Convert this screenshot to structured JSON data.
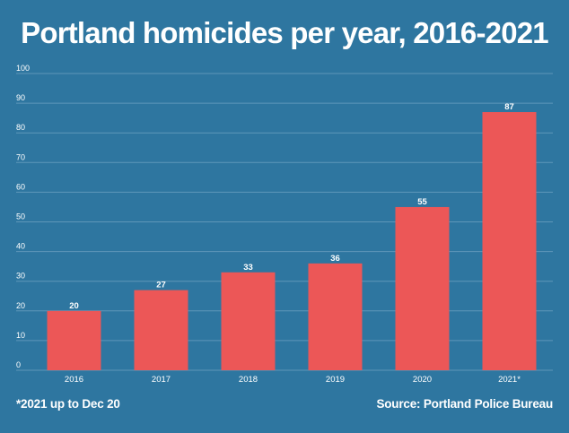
{
  "title": "Portland homicides per year, 2016-2021",
  "footnote": "*2021 up to Dec 20",
  "source": "Source: Portland Police Bureau",
  "colors": {
    "background": "#2e76a0",
    "bar": "#ec5757",
    "grid": "#5e97b9",
    "text": "#ffffff"
  },
  "chart_data": {
    "type": "bar",
    "title": "Portland homicides per year, 2016-2021",
    "xlabel": "",
    "ylabel": "",
    "categories": [
      "2016",
      "2017",
      "2018",
      "2019",
      "2020",
      "2021*"
    ],
    "values": [
      20,
      27,
      33,
      36,
      55,
      87
    ],
    "data_labels": [
      "20",
      "27",
      "33",
      "36",
      "55",
      "87"
    ],
    "ylim": [
      0,
      100
    ],
    "yticks": [
      0,
      10,
      20,
      30,
      40,
      50,
      60,
      70,
      80,
      90,
      100
    ],
    "grid": true,
    "legend": "none"
  }
}
